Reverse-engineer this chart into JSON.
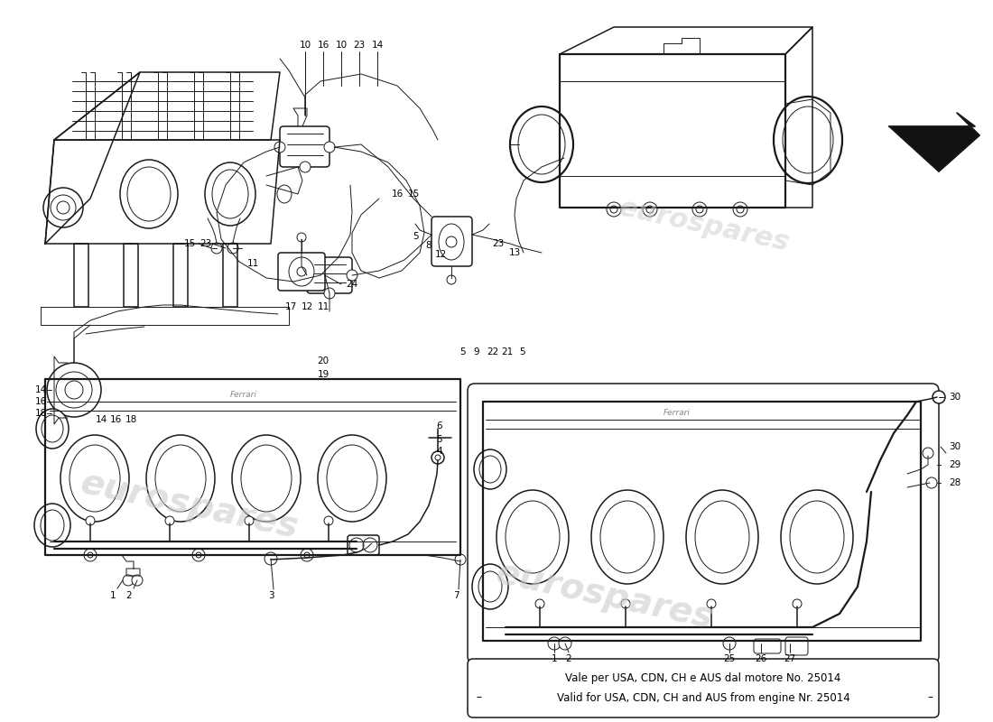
{
  "background_color": "#ffffff",
  "line_color": "#1a1a1a",
  "watermark_color": "#cccccc",
  "watermark_text": "eurospares",
  "note_line1": "Vale per USA, CDN, CH e AUS dal motore No. 25014",
  "note_line2": "Valid for USA, CDN, CH and AUS from engine Nr. 25014",
  "figsize": [
    11.0,
    8.0
  ],
  "dpi": 100,
  "lw_thin": 0.7,
  "lw_med": 1.1,
  "lw_thick": 1.6,
  "lw_vthick": 2.2,
  "font_size_label": 7.5,
  "font_size_note": 8.5
}
